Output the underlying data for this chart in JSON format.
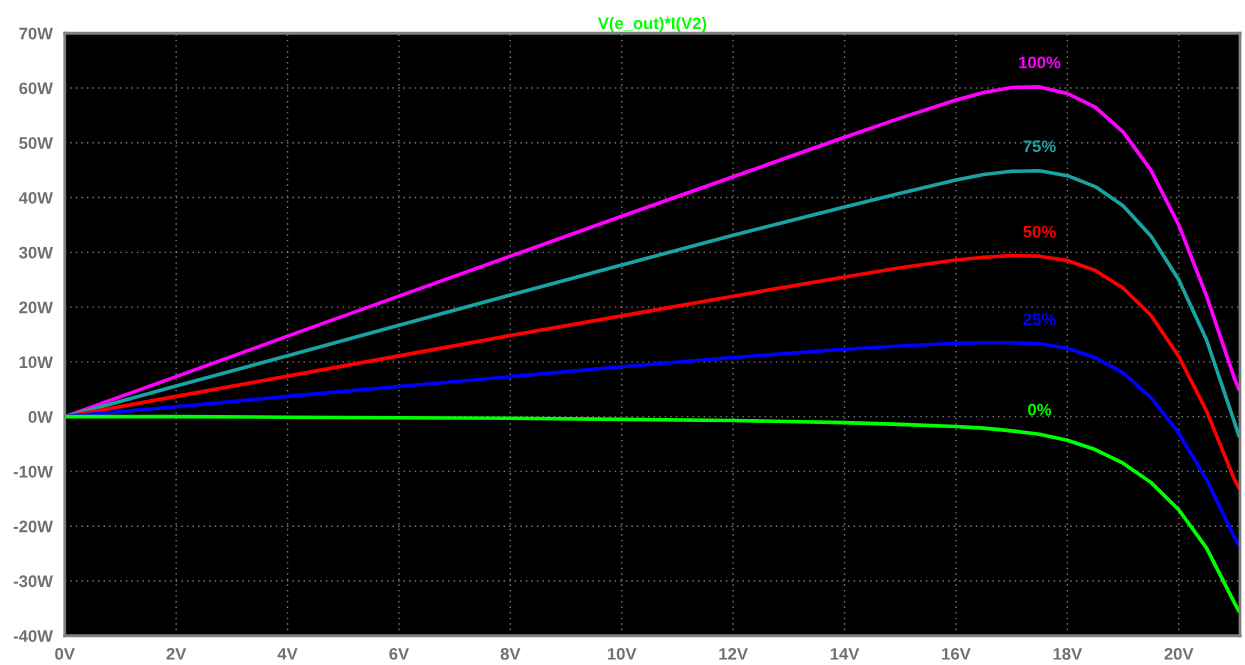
{
  "chart_data": {
    "type": "line",
    "title": "V(e_out)*I(V2)",
    "xlim": [
      0,
      21.1
    ],
    "ylim": [
      -40,
      70
    ],
    "xticks": [
      {
        "value": 0,
        "label": "0V"
      },
      {
        "value": 2,
        "label": "2V"
      },
      {
        "value": 4,
        "label": "4V"
      },
      {
        "value": 6,
        "label": "6V"
      },
      {
        "value": 8,
        "label": "8V"
      },
      {
        "value": 10,
        "label": "10V"
      },
      {
        "value": 12,
        "label": "12V"
      },
      {
        "value": 14,
        "label": "14V"
      },
      {
        "value": 16,
        "label": "16V"
      },
      {
        "value": 18,
        "label": "18V"
      },
      {
        "value": 20,
        "label": "20V"
      }
    ],
    "yticks": [
      {
        "value": -40,
        "label": "-40W"
      },
      {
        "value": -30,
        "label": "-30W"
      },
      {
        "value": -20,
        "label": "-20W"
      },
      {
        "value": -10,
        "label": "-10W"
      },
      {
        "value": 0,
        "label": "0W"
      },
      {
        "value": 10,
        "label": "10W"
      },
      {
        "value": 20,
        "label": "20W"
      },
      {
        "value": 30,
        "label": "30W"
      },
      {
        "value": 40,
        "label": "40W"
      },
      {
        "value": 50,
        "label": "50W"
      },
      {
        "value": 60,
        "label": "60W"
      },
      {
        "value": 70,
        "label": "70W"
      }
    ],
    "grid": true,
    "legend": false,
    "marker": "none",
    "line_style": "solid",
    "x": [
      0,
      2,
      4,
      6,
      8,
      10,
      12,
      14,
      15,
      16,
      16.5,
      17,
      17.5,
      18,
      18.5,
      19,
      19.5,
      20,
      20.5,
      21,
      21.08
    ],
    "series": [
      {
        "name": "100%",
        "color": "#ff00ff",
        "values": [
          0,
          7.3,
          14.7,
          22,
          29.3,
          36.6,
          43.8,
          51,
          54.5,
          57.8,
          59.2,
          60.1,
          60.2,
          59,
          56.5,
          52,
          45,
          35,
          22,
          7,
          5
        ]
      },
      {
        "name": "75%",
        "color": "#1aa3a3",
        "values": [
          0,
          5.6,
          11.1,
          16.7,
          22.2,
          27.7,
          33.1,
          38.3,
          40.8,
          43.2,
          44.2,
          44.8,
          44.9,
          44,
          42,
          38.5,
          33,
          25,
          14,
          -1,
          -3.5
        ]
      },
      {
        "name": "50%",
        "color": "#ff0000",
        "values": [
          0,
          3.7,
          7.4,
          11.1,
          14.8,
          18.4,
          22,
          25.5,
          27.2,
          28.6,
          29.1,
          29.4,
          29.3,
          28.5,
          26.7,
          23.5,
          18.5,
          11,
          1,
          -11.5,
          -13
        ]
      },
      {
        "name": "25%",
        "color": "#0000ff",
        "values": [
          0,
          1.8,
          3.7,
          5.5,
          7.3,
          9.1,
          10.8,
          12.3,
          12.9,
          13.4,
          13.5,
          13.5,
          13.3,
          12.5,
          10.8,
          8,
          3.5,
          -3,
          -11.5,
          -22,
          -23.5
        ]
      },
      {
        "name": "0%",
        "color": "#00ff00",
        "values": [
          0,
          0,
          -0.1,
          -0.2,
          -0.3,
          -0.5,
          -0.7,
          -1.1,
          -1.4,
          -1.8,
          -2.1,
          -2.6,
          -3.2,
          -4.3,
          -6,
          -8.5,
          -12,
          -17,
          -24,
          -34,
          -35.5
        ]
      }
    ]
  }
}
